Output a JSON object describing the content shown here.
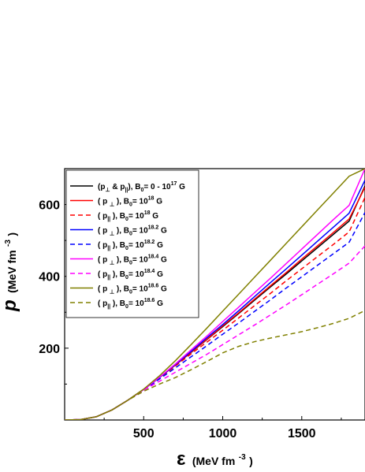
{
  "chart_data": {
    "type": "line",
    "xlabel_symbol": "ε",
    "xlabel_unit": "(MeV fm",
    "xlabel_unit_exp": "-3",
    "xlabel_unit_close": ")",
    "ylabel_symbol": "p",
    "ylabel_unit": "(MeV fm",
    "ylabel_unit_exp": "-3",
    "ylabel_unit_close": ")",
    "xlim": [
      0,
      1900
    ],
    "ylim": [
      0,
      700
    ],
    "xticks": [
      500,
      1000,
      1500
    ],
    "xtick_labels": [
      "500",
      "1000",
      "1500"
    ],
    "yticks": [
      200,
      400,
      600
    ],
    "ytick_labels": [
      "200",
      "400",
      "600"
    ],
    "grid": false,
    "legend_position": "top-left",
    "series": [
      {
        "name": "(p⊥ & p||), B0= 0 - 10^17 G",
        "color": "#000000",
        "dash": "solid",
        "x": [
          0,
          100,
          200,
          300,
          400,
          500,
          600,
          700,
          800,
          900,
          1000,
          1100,
          1200,
          1300,
          1400,
          1500,
          1600,
          1700,
          1800,
          1900
        ],
        "y": [
          0,
          1,
          9,
          28,
          55,
          85,
          118,
          153,
          188,
          224,
          260,
          296,
          333,
          370,
          406,
          443,
          480,
          517,
          554,
          652
        ]
      },
      {
        "name": "( p⊥ ), B0= 10^18 G",
        "color": "#ff0000",
        "dash": "solid",
        "x": [
          0,
          100,
          200,
          300,
          400,
          500,
          600,
          700,
          800,
          900,
          1000,
          1100,
          1200,
          1300,
          1400,
          1500,
          1600,
          1700,
          1800,
          1900
        ],
        "y": [
          0,
          1,
          9,
          28,
          55,
          85,
          118,
          153,
          189,
          225,
          262,
          298,
          336,
          373,
          410,
          448,
          485,
          522,
          560,
          648
        ]
      },
      {
        "name": "( p|| ), B0= 10^18 G",
        "color": "#ff0000",
        "dash": "dashed",
        "x": [
          0,
          100,
          200,
          300,
          400,
          500,
          600,
          700,
          800,
          900,
          1000,
          1100,
          1200,
          1300,
          1400,
          1500,
          1600,
          1700,
          1800,
          1900
        ],
        "y": [
          0,
          1,
          9,
          28,
          55,
          85,
          117,
          150,
          184,
          217,
          250,
          284,
          318,
          352,
          387,
          421,
          455,
          489,
          524,
          620
        ]
      },
      {
        "name": "( p⊥ ), B0= 10^18.2 G",
        "color": "#0000ff",
        "dash": "solid",
        "x": [
          0,
          100,
          200,
          300,
          400,
          500,
          600,
          700,
          800,
          900,
          1000,
          1100,
          1200,
          1300,
          1400,
          1500,
          1600,
          1700,
          1800,
          1900
        ],
        "y": [
          0,
          1,
          9,
          28,
          55,
          85,
          118,
          154,
          191,
          229,
          266,
          304,
          343,
          382,
          420,
          459,
          498,
          537,
          576,
          668
        ]
      },
      {
        "name": "( p|| ), B0= 10^18.2 G",
        "color": "#0000ff",
        "dash": "dashed",
        "x": [
          0,
          100,
          200,
          300,
          400,
          500,
          600,
          700,
          800,
          900,
          1000,
          1100,
          1200,
          1300,
          1400,
          1500,
          1600,
          1700,
          1800,
          1900
        ],
        "y": [
          0,
          1,
          9,
          28,
          55,
          84,
          114,
          145,
          176,
          207,
          239,
          270,
          302,
          334,
          367,
          399,
          431,
          463,
          495,
          578
        ]
      },
      {
        "name": "( p⊥ ), B0= 10^18.4 G",
        "color": "#ff00ff",
        "dash": "solid",
        "x": [
          0,
          100,
          200,
          300,
          400,
          500,
          600,
          700,
          800,
          900,
          1000,
          1100,
          1200,
          1300,
          1400,
          1500,
          1600,
          1700,
          1800,
          1900
        ],
        "y": [
          0,
          1,
          9,
          28,
          55,
          85,
          119,
          156,
          195,
          234,
          274,
          314,
          354,
          394,
          435,
          476,
          517,
          558,
          598,
          700
        ]
      },
      {
        "name": "( p|| ), B0= 10^18.4 G",
        "color": "#ff00ff",
        "dash": "dashed",
        "x": [
          0,
          100,
          200,
          300,
          400,
          500,
          600,
          700,
          800,
          900,
          1000,
          1100,
          1200,
          1300,
          1400,
          1500,
          1600,
          1700,
          1800,
          1900
        ],
        "y": [
          0,
          1,
          9,
          28,
          55,
          83,
          108,
          133,
          158,
          183,
          210,
          237,
          264,
          292,
          320,
          349,
          378,
          407,
          437,
          485
        ]
      },
      {
        "name": "( p⊥ ), B0= 10^18.6 G",
        "color": "#808000",
        "dash": "solid",
        "x": [
          0,
          100,
          200,
          300,
          400,
          500,
          600,
          700,
          800,
          900,
          1000,
          1100,
          1200,
          1300,
          1400,
          1500,
          1600,
          1700,
          1800,
          1900
        ],
        "y": [
          0,
          1,
          9,
          28,
          55,
          86,
          123,
          165,
          210,
          256,
          303,
          350,
          397,
          444,
          491,
          538,
          585,
          632,
          679,
          700
        ]
      },
      {
        "name": "( p|| ), B0= 10^18.6 G",
        "color": "#808000",
        "dash": "dashed",
        "x": [
          0,
          100,
          200,
          300,
          400,
          500,
          600,
          700,
          800,
          900,
          1000,
          1100,
          1200,
          1300,
          1400,
          1500,
          1600,
          1700,
          1800,
          1900
        ],
        "y": [
          0,
          1,
          9,
          28,
          55,
          80,
          100,
          118,
          140,
          163,
          187,
          205,
          218,
          228,
          237,
          246,
          257,
          269,
          283,
          305
        ]
      }
    ],
    "legend": [
      {
        "pre": "(p",
        "sub1": "⊥",
        "mid": " & p",
        "sub2": "||",
        "post": "), B",
        "sub3": "0",
        "eq": "= 0 - 10",
        "sup": "17",
        "unit": " G"
      },
      {
        "pre": "( p ",
        "sub1": "⊥",
        "mid": " ), B",
        "sub2": "",
        "post": "",
        "sub3": "0",
        "eq": "= 10",
        "sup": "18",
        "unit": " G"
      },
      {
        "pre": "( p",
        "sub1": "||",
        "mid": " ), B",
        "sub2": "",
        "post": "",
        "sub3": "0",
        "eq": "= 10",
        "sup": "18",
        "unit": " G"
      },
      {
        "pre": "( p ",
        "sub1": "⊥",
        "mid": " ), B",
        "sub2": "",
        "post": "",
        "sub3": "0",
        "eq": "= 10",
        "sup": "18.2",
        "unit": " G"
      },
      {
        "pre": "( p",
        "sub1": "||",
        "mid": " ), B",
        "sub2": "",
        "post": "",
        "sub3": "0",
        "eq": "= 10",
        "sup": "18.2",
        "unit": " G"
      },
      {
        "pre": "( p ",
        "sub1": "⊥",
        "mid": " ), B",
        "sub2": "",
        "post": "",
        "sub3": "0",
        "eq": "= 10",
        "sup": "18.4",
        "unit": " G"
      },
      {
        "pre": "( p",
        "sub1": "||",
        "mid": " ), B",
        "sub2": "",
        "post": "",
        "sub3": "0",
        "eq": "= 10",
        "sup": "18.4",
        "unit": " G"
      },
      {
        "pre": "( p ",
        "sub1": "⊥",
        "mid": " ), B",
        "sub2": "",
        "post": "",
        "sub3": "0",
        "eq": "= 10",
        "sup": "18.6",
        "unit": " G"
      },
      {
        "pre": "( p",
        "sub1": "||",
        "mid": " ), B",
        "sub2": "",
        "post": "",
        "sub3": "0",
        "eq": "= 10",
        "sup": "18.6",
        "unit": " G"
      }
    ]
  }
}
